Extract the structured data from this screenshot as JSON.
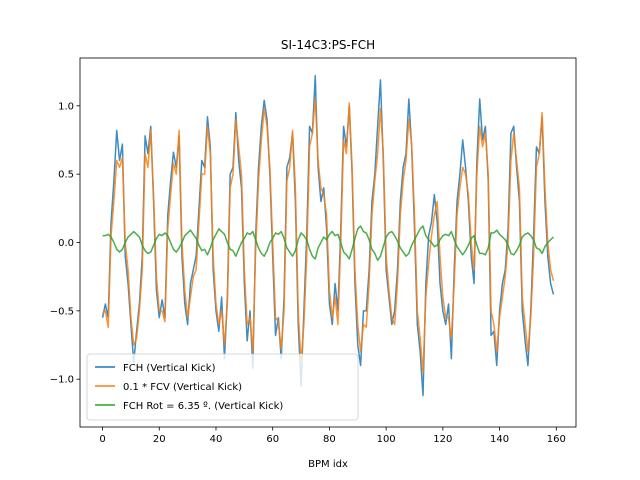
{
  "chart_data": {
    "type": "line",
    "title": "SI-14C3:PS-FCH",
    "xlabel": "BPM idx",
    "x": [
      0,
      1,
      2,
      3,
      4,
      5,
      6,
      7,
      8,
      9,
      10,
      11,
      12,
      13,
      14,
      15,
      16,
      17,
      18,
      19,
      20,
      21,
      22,
      23,
      24,
      25,
      26,
      27,
      28,
      29,
      30,
      31,
      32,
      33,
      34,
      35,
      36,
      37,
      38,
      39,
      40,
      41,
      42,
      43,
      44,
      45,
      46,
      47,
      48,
      49,
      50,
      51,
      52,
      53,
      54,
      55,
      56,
      57,
      58,
      59,
      60,
      61,
      62,
      63,
      64,
      65,
      66,
      67,
      68,
      69,
      70,
      71,
      72,
      73,
      74,
      75,
      76,
      77,
      78,
      79,
      80,
      81,
      82,
      83,
      84,
      85,
      86,
      87,
      88,
      89,
      90,
      91,
      92,
      93,
      94,
      95,
      96,
      97,
      98,
      99,
      100,
      101,
      102,
      103,
      104,
      105,
      106,
      107,
      108,
      109,
      110,
      111,
      112,
      113,
      114,
      115,
      116,
      117,
      118,
      119,
      120,
      121,
      122,
      123,
      124,
      125,
      126,
      127,
      128,
      129,
      130,
      131,
      132,
      133,
      134,
      135,
      136,
      137,
      138,
      139,
      140,
      141,
      142,
      143,
      144,
      145,
      146,
      147,
      148,
      149,
      150,
      151,
      152,
      153,
      154,
      155,
      156,
      157,
      158,
      159
    ],
    "series": [
      {
        "name": "FCH (Vertical Kick)",
        "color": "#1f77b4",
        "values": [
          -0.55,
          -0.45,
          -0.55,
          0.15,
          0.45,
          0.82,
          0.6,
          0.72,
          -0.1,
          -0.3,
          -0.6,
          -0.88,
          -0.65,
          -0.45,
          -0.1,
          0.78,
          0.65,
          0.85,
          0.3,
          -0.35,
          -0.55,
          -0.42,
          -0.55,
          0.2,
          0.45,
          0.66,
          0.55,
          0.78,
          -0.1,
          -0.45,
          -0.6,
          -0.3,
          -0.2,
          -0.1,
          0.25,
          0.6,
          0.55,
          0.92,
          0.7,
          -0.2,
          -0.5,
          -0.65,
          -0.4,
          -0.85,
          -0.4,
          0.5,
          0.55,
          0.95,
          0.6,
          0.4,
          -0.3,
          -0.72,
          -0.5,
          -0.92,
          0.05,
          0.55,
          0.85,
          1.04,
          0.9,
          0.5,
          -0.1,
          -0.68,
          -0.55,
          -0.85,
          -0.4,
          0.55,
          0.62,
          0.8,
          0.3,
          -0.6,
          -1.05,
          -0.5,
          0.05,
          0.85,
          0.8,
          1.22,
          0.55,
          0.3,
          0.4,
          0.1,
          -0.45,
          -0.6,
          -0.3,
          -0.5,
          0.1,
          0.85,
          0.7,
          1.0,
          0.5,
          -0.3,
          -0.75,
          -0.9,
          -0.5,
          -0.5,
          -0.2,
          0.3,
          0.5,
          0.85,
          1.19,
          0.6,
          -0.2,
          -0.4,
          -0.6,
          -0.5,
          -0.2,
          0.3,
          0.55,
          0.65,
          1.05,
          0.7,
          0.1,
          -0.6,
          -0.8,
          -1.12,
          -0.3,
          0.05,
          0.15,
          0.35,
          0.15,
          -0.3,
          -0.5,
          -0.6,
          -0.45,
          -0.85,
          -0.2,
          0.3,
          0.5,
          0.75,
          0.55,
          0.3,
          -0.1,
          -0.3,
          0.6,
          1.05,
          0.75,
          0.85,
          0.45,
          -0.68,
          -0.65,
          -0.9,
          -0.5,
          -0.3,
          -0.2,
          0.1,
          0.8,
          0.85,
          0.55,
          0.3,
          -0.5,
          -0.72,
          -0.9,
          -0.5,
          0.05,
          0.7,
          0.65,
          0.92,
          0.3,
          -0.1,
          -0.3,
          -0.38
        ]
      },
      {
        "name": "0.1 * FCV (Vertical Kick)",
        "color": "#ff7f0e",
        "values": [
          -0.52,
          -0.5,
          -0.62,
          0.05,
          0.3,
          0.6,
          0.55,
          0.62,
          0.0,
          -0.2,
          -0.55,
          -0.75,
          -0.7,
          -0.5,
          -0.2,
          0.65,
          0.55,
          0.82,
          0.35,
          -0.25,
          -0.5,
          -0.5,
          -0.58,
          0.1,
          0.35,
          0.58,
          0.5,
          0.82,
          0.0,
          -0.35,
          -0.55,
          -0.4,
          -0.25,
          -0.2,
          0.15,
          0.5,
          0.5,
          0.85,
          0.65,
          -0.1,
          -0.45,
          -0.6,
          -0.5,
          -0.75,
          -0.45,
          0.4,
          0.5,
          0.9,
          0.7,
          0.5,
          -0.2,
          -0.6,
          -0.55,
          -0.8,
          -0.05,
          0.45,
          0.75,
          0.98,
          0.85,
          0.55,
          0.0,
          -0.55,
          -0.58,
          -0.78,
          -0.5,
          0.45,
          0.55,
          0.82,
          0.4,
          -0.5,
          -0.88,
          -0.6,
          -0.1,
          0.7,
          0.8,
          1.05,
          0.6,
          0.4,
          0.35,
          0.2,
          -0.35,
          -0.55,
          -0.4,
          -0.6,
          0.0,
          0.75,
          0.65,
          1.02,
          0.55,
          -0.2,
          -0.6,
          -0.8,
          -0.6,
          -0.62,
          -0.3,
          0.2,
          0.45,
          0.65,
          0.98,
          0.65,
          -0.1,
          -0.35,
          -0.55,
          -0.6,
          -0.3,
          0.2,
          0.45,
          0.6,
          0.9,
          0.72,
          0.2,
          -0.5,
          -0.7,
          -0.95,
          -0.4,
          -0.15,
          0.05,
          0.2,
          0.3,
          -0.1,
          -0.4,
          -0.55,
          -0.55,
          -0.7,
          -0.3,
          0.2,
          0.4,
          0.55,
          0.5,
          0.35,
          0.0,
          -0.2,
          0.5,
          0.85,
          0.7,
          0.8,
          0.5,
          -0.5,
          -0.6,
          -0.8,
          -0.55,
          -0.4,
          -0.25,
          0.0,
          0.6,
          0.8,
          0.6,
          0.4,
          -0.4,
          -0.6,
          -0.8,
          -0.55,
          -0.1,
          0.55,
          0.65,
          0.95,
          0.4,
          0.0,
          -0.2,
          -0.28
        ]
      },
      {
        "name": "FCH Rot = 6.35 º. (Vertical Kick)",
        "color": "#2ca02c",
        "values": [
          0.05,
          0.05,
          0.06,
          0.04,
          0.0,
          -0.05,
          -0.07,
          -0.05,
          0.0,
          0.04,
          0.06,
          0.08,
          0.06,
          0.04,
          -0.02,
          -0.06,
          -0.08,
          -0.07,
          -0.02,
          0.03,
          0.06,
          0.05,
          0.07,
          0.05,
          0.0,
          -0.05,
          -0.07,
          -0.04,
          0.0,
          0.05,
          0.07,
          0.09,
          0.06,
          0.03,
          -0.02,
          -0.06,
          -0.05,
          -0.09,
          -0.04,
          0.02,
          0.06,
          0.1,
          0.08,
          0.06,
          0.0,
          -0.05,
          -0.06,
          -0.1,
          -0.05,
          0.0,
          0.03,
          0.07,
          0.06,
          0.08,
          0.02,
          -0.04,
          -0.08,
          -0.1,
          -0.06,
          0.0,
          0.03,
          0.07,
          0.06,
          0.08,
          0.03,
          -0.04,
          -0.07,
          -0.1,
          -0.06,
          0.02,
          0.07,
          0.05,
          0.02,
          -0.05,
          -0.1,
          -0.12,
          -0.04,
          0.0,
          0.04,
          0.02,
          0.06,
          0.08,
          0.05,
          0.06,
          0.0,
          -0.07,
          -0.09,
          -0.12,
          -0.05,
          0.03,
          0.1,
          0.12,
          0.08,
          0.07,
          0.02,
          -0.05,
          -0.08,
          -0.13,
          -0.1,
          -0.03,
          0.04,
          0.07,
          0.08,
          0.05,
          0.01,
          -0.04,
          -0.07,
          -0.1,
          -0.08,
          -0.02,
          0.02,
          0.06,
          0.1,
          0.12,
          0.05,
          0.02,
          0.0,
          -0.03,
          -0.02,
          0.02,
          0.05,
          0.06,
          0.05,
          0.08,
          0.02,
          -0.03,
          -0.06,
          -0.09,
          -0.06,
          -0.02,
          0.03,
          0.05,
          -0.02,
          -0.08,
          -0.08,
          -0.09,
          -0.04,
          0.07,
          0.07,
          0.09,
          0.06,
          0.04,
          0.02,
          -0.02,
          -0.08,
          -0.09,
          -0.06,
          -0.02,
          0.04,
          0.06,
          0.07,
          0.05,
          0.02,
          -0.04,
          -0.05,
          -0.08,
          -0.03,
          0.0,
          0.02,
          0.04
        ]
      }
    ],
    "xlim": [
      -7.95,
      166.95
    ],
    "xticks": [
      0,
      20,
      40,
      60,
      80,
      100,
      120,
      140,
      160
    ],
    "ylim": [
      -1.35,
      1.35
    ],
    "yticks": [
      {
        "value": -1.0,
        "label": "−1.0"
      },
      {
        "value": -0.5,
        "label": "−0.5"
      },
      {
        "value": 0.0,
        "label": "0.0"
      },
      {
        "value": 0.5,
        "label": "0.5"
      },
      {
        "value": 1.0,
        "label": "1.0"
      }
    ],
    "legend": "lower left"
  }
}
